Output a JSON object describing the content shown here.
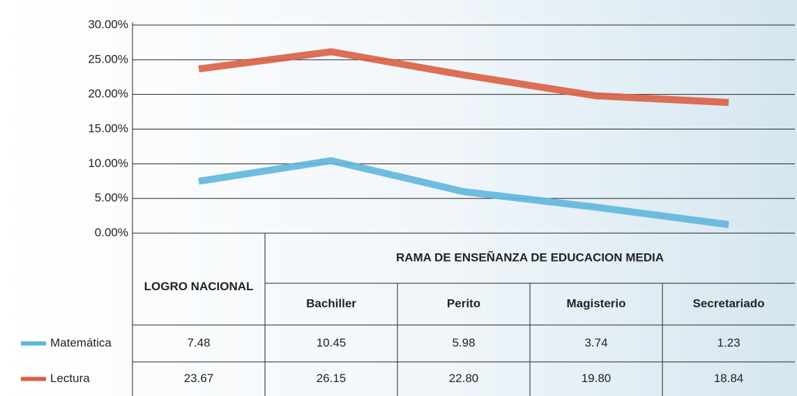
{
  "chart_data": {
    "type": "line",
    "table_header": "RAMA DE ENSEÑANZA DE EDUCACION MEDIA",
    "categories": [
      "LOGRO NACIONAL",
      "Bachiller",
      "Perito",
      "Magisterio",
      "Secretariado"
    ],
    "series": [
      {
        "name": "Matemática",
        "color": "#5fb6dc",
        "values": [
          7.48,
          10.45,
          5.98,
          3.74,
          1.23
        ],
        "value_labels": [
          "7.48",
          "10.45",
          "5.98",
          "3.74",
          "1.23"
        ]
      },
      {
        "name": "Lectura",
        "color": "#d95f43",
        "values": [
          23.67,
          26.15,
          22.8,
          19.8,
          18.84
        ],
        "value_labels": [
          "23.67",
          "26.15",
          "22.80",
          "19.80",
          "18.84"
        ]
      }
    ],
    "ylim": [
      0,
      30
    ],
    "yticks": [
      {
        "value": 0,
        "label": "0.00%"
      },
      {
        "value": 5,
        "label": "5.00%"
      },
      {
        "value": 10,
        "label": "10.00%"
      },
      {
        "value": 15,
        "label": "15.00%"
      },
      {
        "value": 20,
        "label": "20.00%"
      },
      {
        "value": 25,
        "label": "25.00%"
      },
      {
        "value": 30,
        "label": "30.00%"
      }
    ],
    "grid": true
  }
}
